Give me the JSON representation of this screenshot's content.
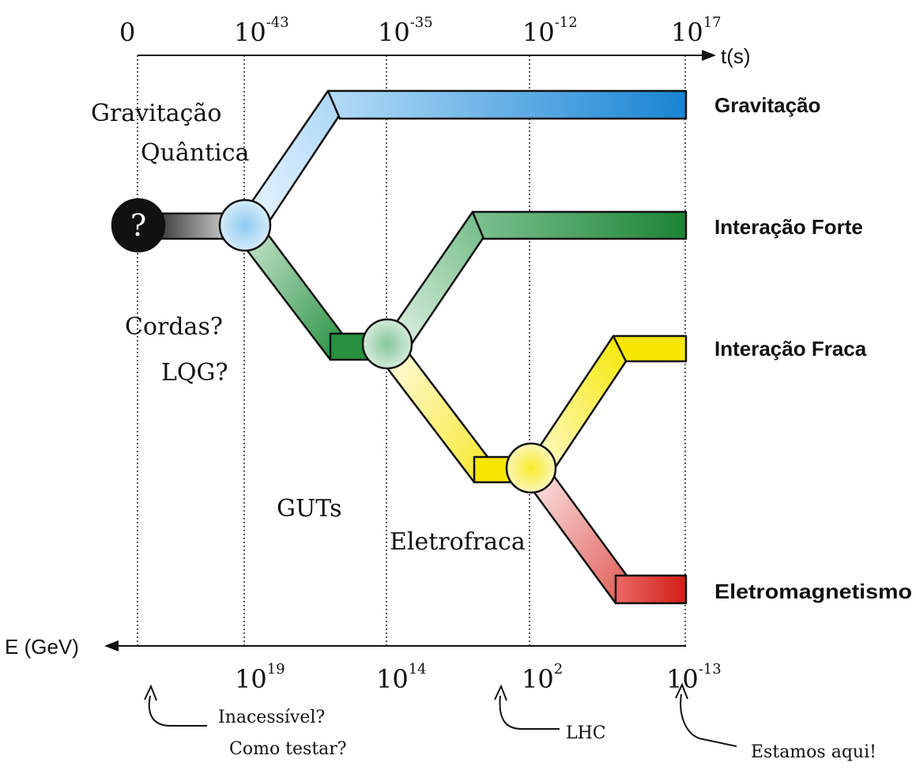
{
  "time_axis": {
    "label": "t(s)",
    "ticks": [
      {
        "base": "0",
        "exp": ""
      },
      {
        "base": "10",
        "exp": "-43"
      },
      {
        "base": "10",
        "exp": "-35"
      },
      {
        "base": "10",
        "exp": "-12"
      },
      {
        "base": "10",
        "exp": "17"
      }
    ]
  },
  "energy_axis": {
    "label": "E (GeV)",
    "ticks": [
      {
        "base": "10",
        "exp": "19"
      },
      {
        "base": "10",
        "exp": "14"
      },
      {
        "base": "10",
        "exp": "2"
      },
      {
        "base": "10",
        "exp": "-13"
      }
    ]
  },
  "unknown_symbol": "?",
  "forces": {
    "gravity": "Gravitação",
    "strong": "Interação Forte",
    "weak": "Interação Fraca",
    "em": "Eletromagnetismo"
  },
  "region_labels": {
    "quantum_gravity_line1": "Gravitação",
    "quantum_gravity_line2": "Quântica",
    "strings": "Cordas?",
    "lqg": "LQG?",
    "guts": "GUTs",
    "electroweak": "Eletrofraca"
  },
  "notes": {
    "inaccessible_line1": "Inacessível?",
    "inaccessible_line2": "Como testar?",
    "lhc": "LHC",
    "here": "Estamos aqui!"
  },
  "colors": {
    "gravity": "#1f8fd6",
    "strong": "#1f8a3a",
    "weak": "#f2e600",
    "em": "#d9221c",
    "unknown": "#111111"
  }
}
